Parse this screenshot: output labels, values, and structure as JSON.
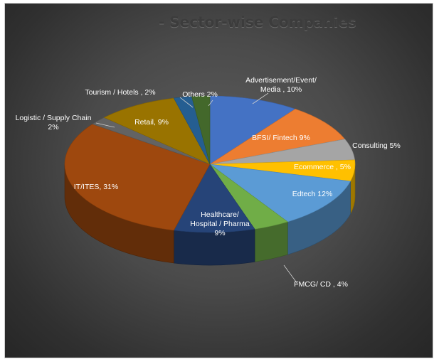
{
  "chart_data": {
    "type": "pie",
    "title": "- Sector-wise Companies",
    "slices": [
      {
        "name": "Advertisement/Event/ Media",
        "value": 10,
        "label_lines": [
          "Advertisement/Event/",
          "Media , 10%"
        ],
        "color": "#4472c4"
      },
      {
        "name": "BFSI/ Fintech",
        "value": 9,
        "label_lines": [
          "BFSI/ Fintech  9%"
        ],
        "color": "#ed7d31"
      },
      {
        "name": "Consulting",
        "value": 5,
        "label_lines": [
          "Consulting   5%"
        ],
        "color": "#a5a5a5"
      },
      {
        "name": "Ecommerce",
        "value": 5,
        "label_lines": [
          "Ecommerce , 5%"
        ],
        "color": "#ffc000"
      },
      {
        "name": "Edtech",
        "value": 12,
        "label_lines": [
          "Edtech  12%"
        ],
        "color": "#5b9bd5"
      },
      {
        "name": "FMCG/ CD",
        "value": 4,
        "label_lines": [
          "FMCG/ CD , 4%"
        ],
        "color": "#70ad47"
      },
      {
        "name": "Healthcare/ Hospital / Pharma",
        "value": 9,
        "label_lines": [
          "Healthcare/",
          "Hospital / Pharma",
          "9%"
        ],
        "color": "#264478"
      },
      {
        "name": "IT/ITES",
        "value": 31,
        "label_lines": [
          "IT/ITES, 31%"
        ],
        "color": "#9e480e"
      },
      {
        "name": "Logistic / Supply Chain",
        "value": 2,
        "label_lines": [
          "Logistic / Supply Chain",
          "2%"
        ],
        "color": "#636363"
      },
      {
        "name": "Retail",
        "value": 9,
        "label_lines": [
          "Retail, 9%"
        ],
        "color": "#997300"
      },
      {
        "name": "Tourism / Hotels",
        "value": 2,
        "label_lines": [
          "Tourism / Hotels , 2%"
        ],
        "color": "#255e91"
      },
      {
        "name": "Others",
        "value": 2,
        "label_lines": [
          "Others  2%"
        ],
        "color": "#43682b"
      }
    ]
  }
}
